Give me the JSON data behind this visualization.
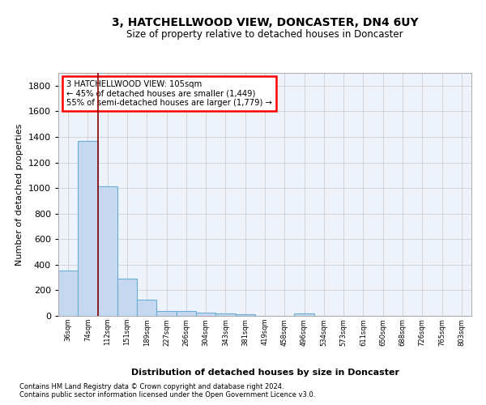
{
  "title": "3, HATCHELLWOOD VIEW, DONCASTER, DN4 6UY",
  "subtitle": "Size of property relative to detached houses in Doncaster",
  "xlabel": "Distribution of detached houses by size in Doncaster",
  "ylabel": "Number of detached properties",
  "bar_color": "#c5d8f0",
  "bar_edge_color": "#6aaed6",
  "background_color": "#edf2fb",
  "grid_color": "#c8c8c8",
  "categories": [
    "36sqm",
    "74sqm",
    "112sqm",
    "151sqm",
    "189sqm",
    "227sqm",
    "266sqm",
    "304sqm",
    "343sqm",
    "381sqm",
    "419sqm",
    "458sqm",
    "496sqm",
    "534sqm",
    "573sqm",
    "611sqm",
    "650sqm",
    "688sqm",
    "726sqm",
    "765sqm",
    "803sqm"
  ],
  "values": [
    355,
    1365,
    1015,
    290,
    125,
    40,
    35,
    25,
    20,
    15,
    0,
    0,
    20,
    0,
    0,
    0,
    0,
    0,
    0,
    0,
    0
  ],
  "ylim": [
    0,
    1900
  ],
  "yticks": [
    0,
    200,
    400,
    600,
    800,
    1000,
    1200,
    1400,
    1600,
    1800
  ],
  "property_line_bin_index": 1.5,
  "annotation_text": "3 HATCHELLWOOD VIEW: 105sqm\n← 45% of detached houses are smaller (1,449)\n55% of semi-detached houses are larger (1,779) →",
  "footnote1": "Contains HM Land Registry data © Crown copyright and database right 2024.",
  "footnote2": "Contains public sector information licensed under the Open Government Licence v3.0."
}
